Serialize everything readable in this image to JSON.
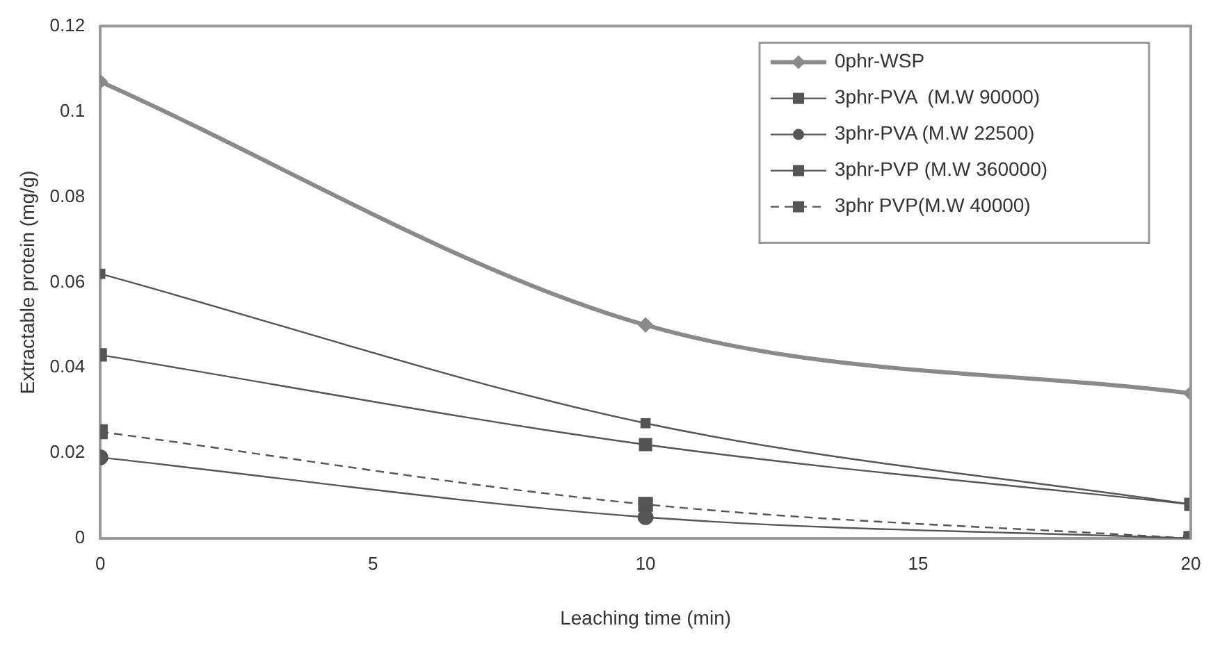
{
  "chart_data": {
    "type": "line",
    "xlabel": "Leaching time (min)",
    "ylabel": "Extractable protein (mg/g)",
    "xlim": [
      0,
      20
    ],
    "xticks": [
      0,
      5,
      10,
      15,
      20
    ],
    "ylim": [
      0,
      0.12
    ],
    "yticks": [
      0,
      0.02,
      0.04,
      0.06,
      0.08,
      0.1,
      0.12
    ],
    "grid": false,
    "legend": "top right",
    "line_style": "solid",
    "series": [
      {
        "name": "0phr-WSP",
        "color": "#8a8a8a",
        "x": [
          0,
          10,
          20
        ],
        "values": [
          0.107,
          0.05,
          0.034
        ],
        "marker": "diamond"
      },
      {
        "name": "3phr-PVA  (M.W 90000)",
        "color": "#555555",
        "x": [
          0,
          10,
          20
        ],
        "values": [
          0.062,
          0.027,
          0.008
        ],
        "marker": "square"
      },
      {
        "name": "3phr-PVA (M.W 22500)",
        "color": "#555555",
        "x": [
          0,
          10,
          20
        ],
        "values": [
          0.019,
          0.005,
          0
        ],
        "marker": "circle"
      },
      {
        "name": "3phr-PVP (M.W 360000)",
        "color": "#555555",
        "x": [
          0,
          10,
          20
        ],
        "values": [
          0.043,
          0.022,
          0.008
        ],
        "marker": "square"
      },
      {
        "name": "3phr PVP(M.W 40000)",
        "color": "#555555",
        "x": [
          0,
          10,
          20
        ],
        "values": [
          0.025,
          0.008,
          0
        ],
        "marker": "square",
        "line_style": "dashed"
      }
    ]
  }
}
